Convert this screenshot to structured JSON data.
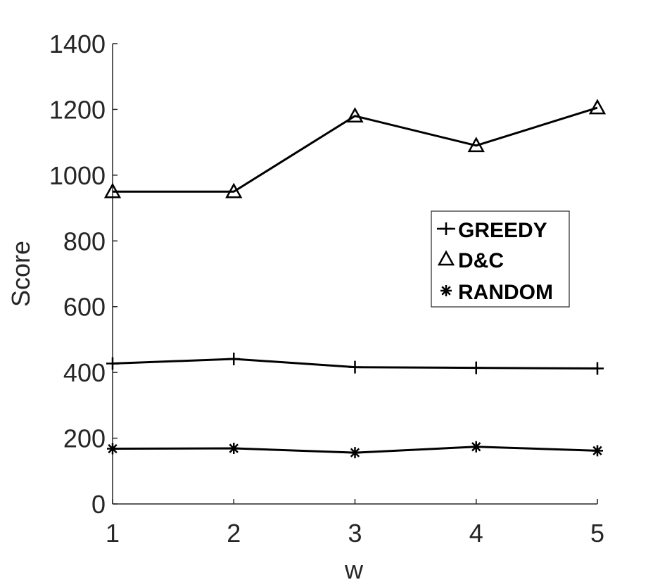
{
  "chart_data": {
    "type": "line",
    "xlabel": "w",
    "ylabel": "Score",
    "x": [
      1,
      2,
      3,
      4,
      5
    ],
    "xlim": [
      1,
      5
    ],
    "ylim": [
      0,
      1400
    ],
    "xticks": [
      "1",
      "2",
      "3",
      "4",
      "5"
    ],
    "yticks": [
      "0",
      "200",
      "400",
      "600",
      "800",
      "1000",
      "1200",
      "1400"
    ],
    "grid": false,
    "legend_position": "right-middle",
    "series": [
      {
        "name": "GREEDY",
        "marker": "plus",
        "color": "#000000",
        "values": [
          427,
          441,
          416,
          414,
          412
        ]
      },
      {
        "name": "D&C",
        "marker": "triangle",
        "color": "#000000",
        "values": [
          950,
          950,
          1180,
          1090,
          1205
        ]
      },
      {
        "name": "RANDOM",
        "marker": "asterisk",
        "color": "#000000",
        "values": [
          168,
          169,
          156,
          174,
          162
        ]
      }
    ]
  }
}
